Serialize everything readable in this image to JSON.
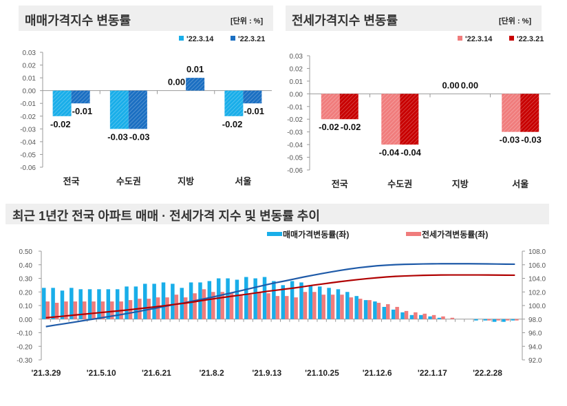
{
  "chart_data": [
    {
      "type": "bar",
      "title": "매매가격지수 변동률",
      "unit": "[단위 : %]",
      "categories": [
        "전국",
        "수도권",
        "지방",
        "서울"
      ],
      "series": [
        {
          "name": "'22.3.14",
          "values": [
            -0.02,
            -0.03,
            0.0,
            -0.02
          ],
          "color": "#19aee9"
        },
        {
          "name": "'22.3.21",
          "values": [
            -0.01,
            -0.03,
            0.01,
            -0.01
          ],
          "color": "#1b6fc2"
        }
      ],
      "ylim": [
        -0.06,
        0.03
      ],
      "yticks": [
        "0.03",
        "0.02",
        "0.01",
        "0.00",
        "-0.01",
        "-0.02",
        "-0.03",
        "-0.04",
        "-0.05",
        "-0.06"
      ],
      "legend": "top-right"
    },
    {
      "type": "bar",
      "title": "전세가격지수 변동률",
      "unit": "[단위 : %]",
      "categories": [
        "전국",
        "수도권",
        "지방",
        "서울"
      ],
      "series": [
        {
          "name": "'22.3.14",
          "values": [
            -0.02,
            -0.04,
            0.0,
            -0.03
          ],
          "color": "#f07c7c"
        },
        {
          "name": "'22.3.21",
          "values": [
            -0.02,
            -0.04,
            0.0,
            -0.03
          ],
          "color": "#c80000"
        }
      ],
      "ylim": [
        -0.06,
        0.03
      ],
      "yticks": [
        "0.03",
        "0.02",
        "0.01",
        "0.00",
        "-0.01",
        "-0.02",
        "-0.03",
        "-0.04",
        "-0.05",
        "-0.06"
      ],
      "legend": "top-right"
    },
    {
      "type": "bar+line",
      "title": "최근 1년간 전국 아파트 매매 · 전세가격 지수 및 변동률 추이",
      "xticks": [
        "'21.3.29",
        "'21.5.10",
        "'21.6.21",
        "'21.8.2",
        "'21.9.13",
        "'21.10.25",
        "'21.12.6",
        "'22.1.17",
        "'22.2.28"
      ],
      "ylim_left": [
        -0.3,
        0.5
      ],
      "yticks_left": [
        "0.50",
        "0.40",
        "0.30",
        "0.20",
        "0.10",
        "0.00",
        "-0.10",
        "-0.20",
        "-0.30"
      ],
      "ylim_right": [
        92,
        108
      ],
      "yticks_right": [
        "108.0",
        "106.0",
        "104.0",
        "102.0",
        "100.0",
        "98.0",
        "96.0",
        "94.0",
        "92.0"
      ],
      "series": [
        {
          "name": "매매가격변동률(좌)",
          "type": "bar",
          "axis": "left",
          "color": "#19aee9",
          "values": [
            0.23,
            0.23,
            0.21,
            0.23,
            0.22,
            0.22,
            0.22,
            0.22,
            0.22,
            0.24,
            0.24,
            0.26,
            0.26,
            0.27,
            0.26,
            0.23,
            0.27,
            0.27,
            0.28,
            0.3,
            0.3,
            0.29,
            0.31,
            0.3,
            0.31,
            0.28,
            0.25,
            0.28,
            0.27,
            0.25,
            0.24,
            0.23,
            0.22,
            0.2,
            0.17,
            0.14,
            0.13,
            0.09,
            0.07,
            0.05,
            0.03,
            0.03,
            0.02,
            0.01,
            0.0,
            0.0,
            0.0,
            -0.01,
            -0.01,
            -0.02,
            -0.02,
            -0.01
          ]
        },
        {
          "name": "전세가격변동률(좌)",
          "type": "bar",
          "axis": "left",
          "color": "#f07c7c",
          "values": [
            0.13,
            0.12,
            0.13,
            0.13,
            0.13,
            0.13,
            0.13,
            0.13,
            0.13,
            0.14,
            0.15,
            0.15,
            0.16,
            0.16,
            0.18,
            0.16,
            0.19,
            0.22,
            0.2,
            0.2,
            0.19,
            0.18,
            0.18,
            0.2,
            0.19,
            0.17,
            0.17,
            0.16,
            0.2,
            0.2,
            0.18,
            0.18,
            0.18,
            0.16,
            0.15,
            0.14,
            0.12,
            0.11,
            0.09,
            0.06,
            0.05,
            0.04,
            0.03,
            0.02,
            0.01,
            0.0,
            0.0,
            0.0,
            -0.01,
            -0.01,
            -0.01,
            -0.01
          ]
        },
        {
          "type": "line",
          "axis": "right",
          "color": "#1e5aa8",
          "values": [
            96.9,
            97.12,
            97.32,
            97.54,
            97.76,
            97.97,
            98.19,
            98.41,
            98.63,
            98.87,
            99.11,
            99.37,
            99.63,
            99.9,
            100.16,
            100.39,
            100.66,
            100.93,
            101.21,
            101.51,
            101.82,
            102.12,
            102.44,
            102.75,
            103.07,
            103.36,
            103.62,
            103.91,
            104.19,
            104.45,
            104.7,
            104.94,
            105.17,
            105.38,
            105.56,
            105.71,
            105.85,
            105.94,
            106.01,
            106.06,
            106.09,
            106.12,
            106.14,
            106.15,
            106.15,
            106.15,
            106.15,
            106.14,
            106.13,
            106.11,
            106.09,
            106.08
          ]
        },
        {
          "type": "line",
          "axis": "right",
          "color": "#b00000",
          "values": [
            98.2,
            98.32,
            98.45,
            98.58,
            98.71,
            98.84,
            98.97,
            99.1,
            99.23,
            99.37,
            99.52,
            99.67,
            99.83,
            99.99,
            100.17,
            100.33,
            100.52,
            100.74,
            100.94,
            101.14,
            101.33,
            101.51,
            101.69,
            101.89,
            102.08,
            102.25,
            102.42,
            102.58,
            102.78,
            102.98,
            103.16,
            103.34,
            103.52,
            103.68,
            103.83,
            103.97,
            104.09,
            104.2,
            104.29,
            104.35,
            104.4,
            104.44,
            104.47,
            104.49,
            104.5,
            104.5,
            104.5,
            104.5,
            104.49,
            104.48,
            104.47,
            104.46
          ]
        }
      ],
      "legend": "top-right"
    }
  ]
}
